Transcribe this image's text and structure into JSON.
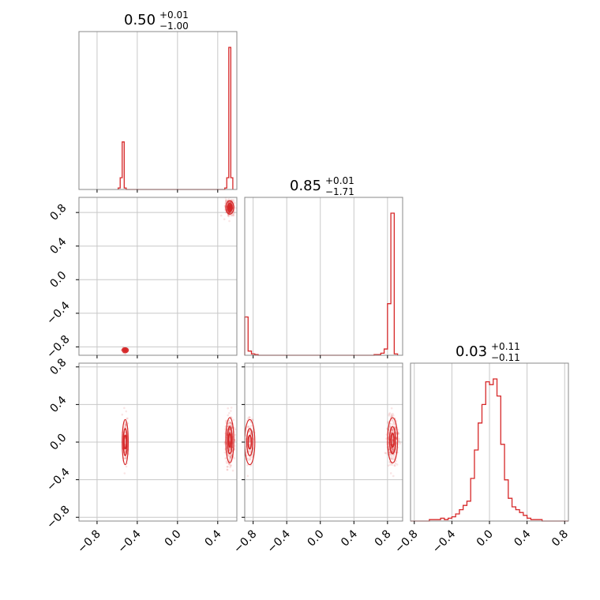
{
  "chart_data": {
    "type": "corner",
    "color": "#d62728",
    "grid": true,
    "ticks": [
      "−0.8",
      "−0.4",
      "0.0",
      "0.4",
      "0.8"
    ],
    "tick_values": [
      -0.8,
      -0.4,
      0.0,
      0.4,
      0.8
    ],
    "axis_ranges": [
      [
        -0.98,
        0.59
      ],
      [
        -0.9,
        0.98
      ],
      [
        -0.84,
        0.84
      ]
    ],
    "titles": [
      {
        "median": "0.50",
        "plus": "+0.01",
        "minus": "−1.00"
      },
      {
        "median": "0.85",
        "plus": "+0.01",
        "minus": "−1.71"
      },
      {
        "median": "0.03",
        "plus": "+0.11",
        "minus": "−0.11"
      }
    ],
    "histograms": [
      {
        "parameter": 0,
        "bin_edges": [
          -0.59,
          -0.57,
          -0.55,
          -0.53,
          -0.51,
          0.47,
          0.49,
          0.51,
          0.53,
          0.55
        ],
        "counts": [
          0.03,
          0.24,
          0.97,
          0.03,
          0,
          0.03,
          0.24,
          2.9,
          0.24
        ]
      },
      {
        "parameter": 1,
        "bin_edges": [
          -0.9,
          -0.86,
          -0.82,
          -0.78,
          -0.74,
          0.64,
          0.72,
          0.76,
          0.8,
          0.84,
          0.88,
          0.92
        ],
        "counts": [
          1.1,
          0.12,
          0.04,
          0.02,
          0,
          0.02,
          0.06,
          0.18,
          1.48,
          4.08,
          0.04
        ]
      },
      {
        "parameter": 2,
        "bin_edges": [
          -0.84,
          -0.8,
          -0.76,
          -0.72,
          -0.68,
          -0.64,
          -0.6,
          -0.56,
          -0.52,
          -0.48,
          -0.44,
          -0.4,
          -0.36,
          -0.32,
          -0.28,
          -0.24,
          -0.2,
          -0.16,
          -0.12,
          -0.08,
          -0.04,
          0.0,
          0.04,
          0.08,
          0.12,
          0.16,
          0.2,
          0.24,
          0.28,
          0.32,
          0.36,
          0.4,
          0.44,
          0.48,
          0.52,
          0.56,
          0.6,
          0.64,
          0.68,
          0.72,
          0.76,
          0.8,
          0.84
        ],
        "counts": [
          0,
          0,
          0,
          0,
          0,
          0.01,
          0.01,
          0.01,
          0.02,
          0.01,
          0.02,
          0.03,
          0.05,
          0.08,
          0.11,
          0.14,
          0.3,
          0.5,
          0.69,
          0.82,
          0.98,
          0.96,
          1.0,
          0.88,
          0.54,
          0.29,
          0.16,
          0.1,
          0.08,
          0.06,
          0.04,
          0.02,
          0.01,
          0.01,
          0.01,
          0,
          0,
          0,
          0,
          0,
          0,
          0
        ]
      }
    ],
    "scatter_2d": [
      {
        "x_param": 0,
        "y_param": 1,
        "clusters": [
          {
            "x_center": 0.52,
            "y_center": 0.86,
            "x_spread": 0.02,
            "y_spread": 0.04,
            "weight": 0.78
          },
          {
            "x_center": -0.52,
            "y_center": -0.84,
            "x_spread": 0.015,
            "y_spread": 0.015,
            "weight": 0.22
          }
        ]
      },
      {
        "x_param": 0,
        "y_param": 2,
        "clusters": [
          {
            "x_center": 0.52,
            "y_center": 0.02,
            "x_spread": 0.02,
            "y_spread": 0.12,
            "weight": 0.76
          },
          {
            "x_center": -0.52,
            "y_center": 0.0,
            "x_spread": 0.015,
            "y_spread": 0.12,
            "weight": 0.24
          }
        ]
      },
      {
        "x_param": 1,
        "y_param": 2,
        "clusters": [
          {
            "x_center": 0.86,
            "y_center": 0.02,
            "x_spread": 0.03,
            "y_spread": 0.12,
            "weight": 0.78
          },
          {
            "x_center": -0.84,
            "y_center": 0.0,
            "x_spread": 0.03,
            "y_spread": 0.12,
            "weight": 0.22
          }
        ]
      }
    ]
  }
}
